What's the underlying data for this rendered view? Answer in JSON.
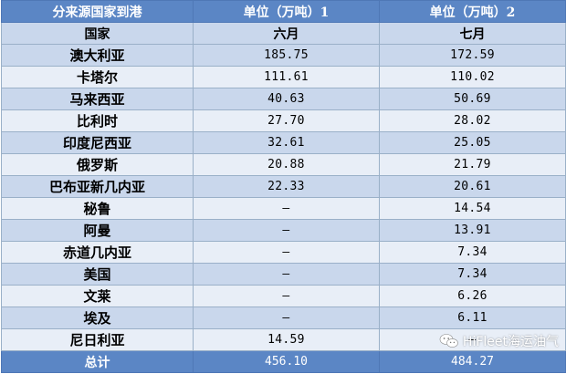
{
  "table": {
    "header": [
      "分来源国家到港",
      "单位（万吨）1",
      "单位（万吨）2"
    ],
    "subheader": [
      "国家",
      "六月",
      "七月"
    ],
    "rows": [
      {
        "country": "澳大利亚",
        "june": "185.75",
        "july": "172.59"
      },
      {
        "country": "卡塔尔",
        "june": "111.61",
        "july": "110.02"
      },
      {
        "country": "马来西亚",
        "june": "40.63",
        "july": "50.69"
      },
      {
        "country": "比利时",
        "june": "27.70",
        "july": "28.02"
      },
      {
        "country": "印度尼西亚",
        "june": "32.61",
        "july": "25.05"
      },
      {
        "country": "俄罗斯",
        "june": "20.88",
        "july": "21.79"
      },
      {
        "country": "巴布亚新几内亚",
        "june": "22.33",
        "july": "20.61"
      },
      {
        "country": "秘鲁",
        "june": "—",
        "july": "14.54"
      },
      {
        "country": "阿曼",
        "june": "—",
        "july": "13.91"
      },
      {
        "country": "赤道几内亚",
        "june": "—",
        "july": "7.34"
      },
      {
        "country": "美国",
        "june": "—",
        "july": "7.34"
      },
      {
        "country": "文莱",
        "june": "—",
        "july": "6.26"
      },
      {
        "country": "埃及",
        "june": "—",
        "july": "6.11"
      },
      {
        "country": "尼日利亚",
        "june": "14.59",
        "july": "—"
      }
    ],
    "total": {
      "label": "总计",
      "june": "456.10",
      "july": "484.27"
    }
  },
  "watermark": {
    "text": "HiFleet海运油气",
    "icon": "wechat-icon"
  },
  "colors": {
    "header": "#5b86c5",
    "row_dark": "#c9d7ec",
    "row_light": "#e8eef7"
  }
}
